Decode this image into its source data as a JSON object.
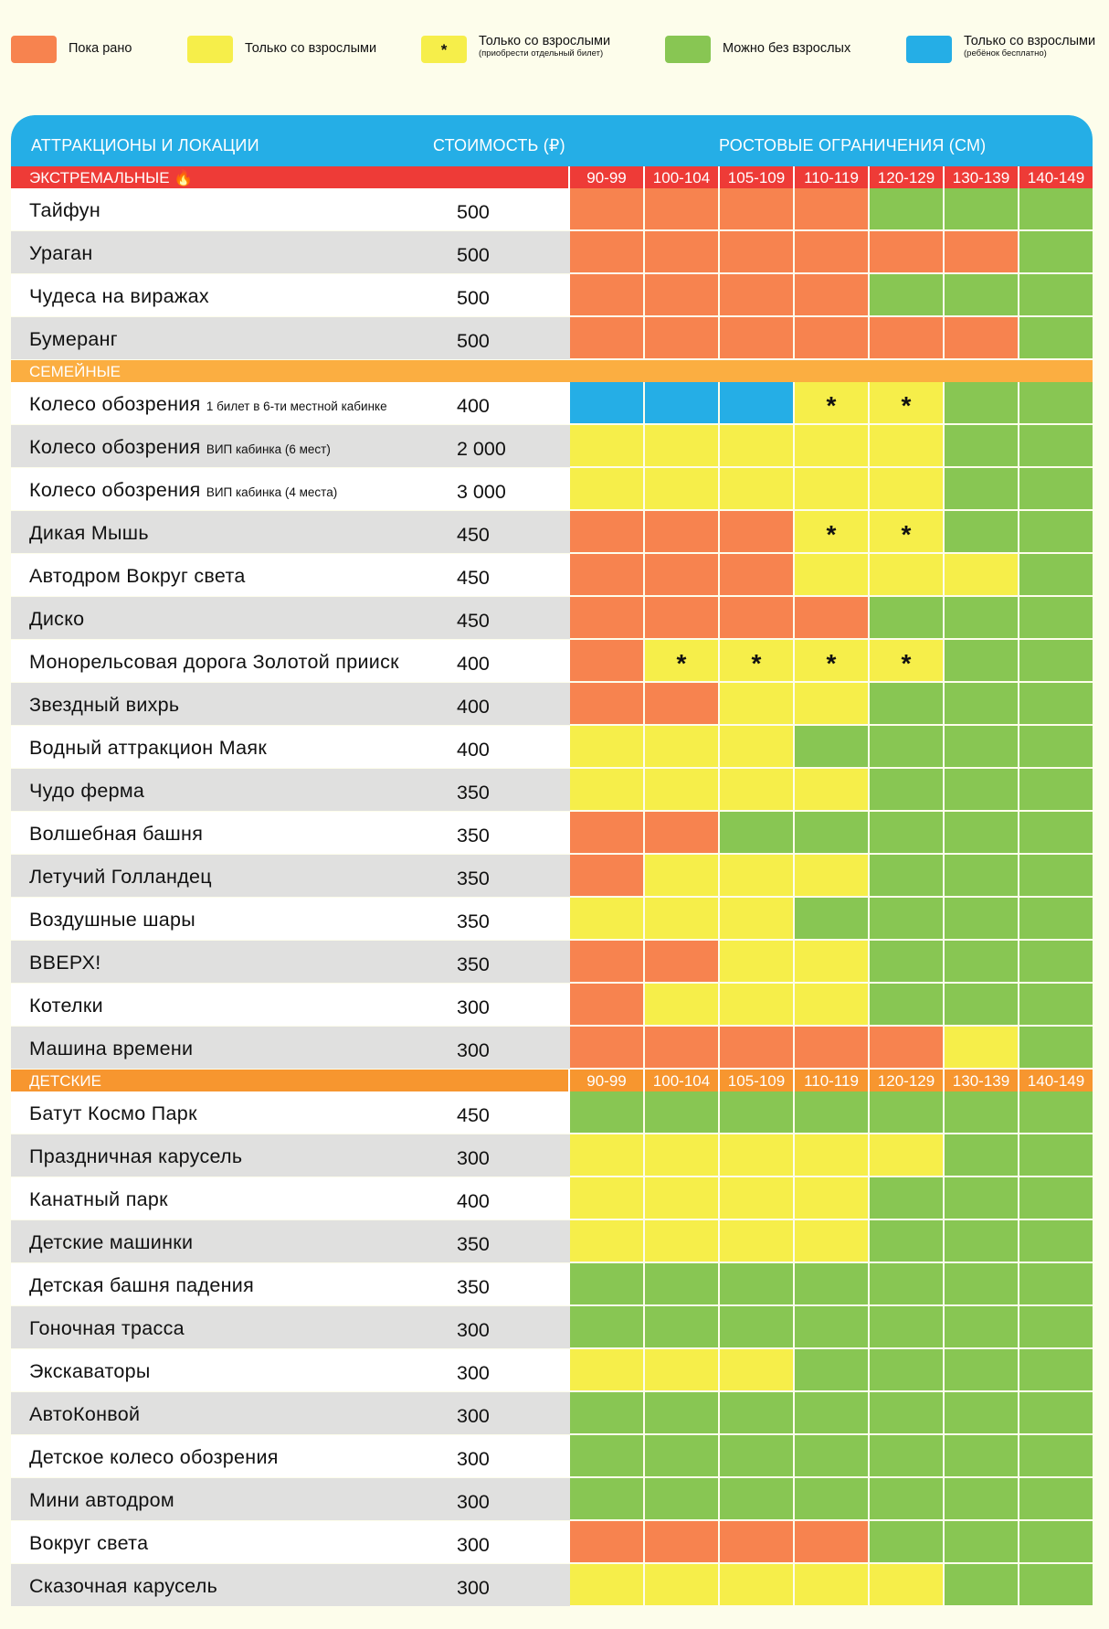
{
  "colors": {
    "early": "#f7834f",
    "adult": "#f6ee4a",
    "adult_ticket": "#f6ee4a",
    "alone": "#88c653",
    "free_child": "#25aee6",
    "header_blue": "#25aee6",
    "extreme_red": "#ee3b37",
    "family_orange": "#fbae41",
    "kids_orange": "#f7962f"
  },
  "legend": [
    {
      "key": "early",
      "label": "Пока рано",
      "sub": "",
      "mark": ""
    },
    {
      "key": "adult",
      "label": "Только со взрослыми",
      "sub": "",
      "mark": ""
    },
    {
      "key": "adult_ticket",
      "label": "Только со взрослыми",
      "sub": "(приобрести отдельный билет)",
      "mark": "*"
    },
    {
      "key": "alone",
      "label": "Можно без взрослых",
      "sub": "",
      "mark": ""
    },
    {
      "key": "free_child",
      "label": "Только со взрослыми",
      "sub": "(ребёнок бесплатно)",
      "mark": ""
    }
  ],
  "header": {
    "col_name": "АТТРАКЦИОНЫ И ЛОКАЦИИ",
    "col_price": "СТОИМОСТЬ (₽)",
    "col_heights": "РОСТОВЫЕ ОГРАНИЧЕНИЯ (СМ)"
  },
  "height_ranges": [
    "90-99",
    "100-104",
    "105-109",
    "110-119",
    "120-129",
    "130-139",
    "140-149"
  ],
  "sections": [
    {
      "title": "ЭКСТРЕМАЛЬНЫЕ 🔥",
      "color_key": "extreme_red",
      "show_ranges": true,
      "rows": [
        {
          "name": "Тайфун",
          "note": "",
          "price": "500",
          "cells": [
            "O",
            "O",
            "O",
            "O",
            "G",
            "G",
            "G"
          ]
        },
        {
          "name": "Ураган",
          "note": "",
          "price": "500",
          "cells": [
            "O",
            "O",
            "O",
            "O",
            "O",
            "O",
            "G"
          ]
        },
        {
          "name": "Чудеса на виражах",
          "note": "",
          "price": "500",
          "cells": [
            "O",
            "O",
            "O",
            "O",
            "G",
            "G",
            "G"
          ]
        },
        {
          "name": "Бумеранг",
          "note": "",
          "price": "500",
          "cells": [
            "O",
            "O",
            "O",
            "O",
            "O",
            "O",
            "G"
          ]
        }
      ]
    },
    {
      "title": "СЕМЕЙНЫЕ",
      "color_key": "family_orange",
      "show_ranges": false,
      "rows": [
        {
          "name": "Колесо обозрения",
          "note": "1 билет в 6-ти местной кабинке",
          "price": "400",
          "cells": [
            "B",
            "B",
            "B",
            "Y*",
            "Y*",
            "G",
            "G"
          ]
        },
        {
          "name": "Колесо обозрения",
          "note": "ВИП кабинка (6 мест)",
          "price": "2 000",
          "cells": [
            "Y",
            "Y",
            "Y",
            "Y",
            "Y",
            "G",
            "G"
          ]
        },
        {
          "name": "Колесо обозрения",
          "note": "ВИП кабинка (4 места)",
          "price": "3 000",
          "cells": [
            "Y",
            "Y",
            "Y",
            "Y",
            "Y",
            "G",
            "G"
          ]
        },
        {
          "name": "Дикая Мышь",
          "note": "",
          "price": "450",
          "cells": [
            "O",
            "O",
            "O",
            "Y*",
            "Y*",
            "G",
            "G"
          ]
        },
        {
          "name": "Автодром Вокруг света",
          "note": "",
          "price": "450",
          "cells": [
            "O",
            "O",
            "O",
            "Y",
            "Y",
            "Y",
            "G"
          ]
        },
        {
          "name": "Диско",
          "note": "",
          "price": "450",
          "cells": [
            "O",
            "O",
            "O",
            "O",
            "G",
            "G",
            "G"
          ]
        },
        {
          "name": "Монорельсовая дорога Золотой прииск",
          "note": "",
          "price": "400",
          "cells": [
            "O",
            "Y*",
            "Y*",
            "Y*",
            "Y*",
            "G",
            "G"
          ]
        },
        {
          "name": "Звездный вихрь",
          "note": "",
          "price": "400",
          "cells": [
            "O",
            "O",
            "Y",
            "Y",
            "G",
            "G",
            "G"
          ]
        },
        {
          "name": "Водный аттракцион Маяк",
          "note": "",
          "price": "400",
          "cells": [
            "Y",
            "Y",
            "Y",
            "G",
            "G",
            "G",
            "G"
          ]
        },
        {
          "name": "Чудо ферма",
          "note": "",
          "price": "350",
          "cells": [
            "Y",
            "Y",
            "Y",
            "Y",
            "G",
            "G",
            "G"
          ]
        },
        {
          "name": "Волшебная башня",
          "note": "",
          "price": "350",
          "cells": [
            "O",
            "O",
            "G",
            "G",
            "G",
            "G",
            "G"
          ]
        },
        {
          "name": "Летучий Голландец",
          "note": "",
          "price": "350",
          "cells": [
            "O",
            "Y",
            "Y",
            "Y",
            "G",
            "G",
            "G"
          ]
        },
        {
          "name": "Воздушные шары",
          "note": "",
          "price": "350",
          "cells": [
            "Y",
            "Y",
            "Y",
            "G",
            "G",
            "G",
            "G"
          ]
        },
        {
          "name": "ВВЕРХ!",
          "note": "",
          "price": "350",
          "cells": [
            "O",
            "O",
            "Y",
            "Y",
            "G",
            "G",
            "G"
          ]
        },
        {
          "name": "Котелки",
          "note": "",
          "price": "300",
          "cells": [
            "O",
            "Y",
            "Y",
            "Y",
            "G",
            "G",
            "G"
          ]
        },
        {
          "name": "Машина времени",
          "note": "",
          "price": "300",
          "cells": [
            "O",
            "O",
            "O",
            "O",
            "O",
            "Y",
            "G"
          ]
        }
      ]
    },
    {
      "title": "ДЕТСКИЕ",
      "color_key": "kids_orange",
      "show_ranges": true,
      "rows": [
        {
          "name": "Батут Космо Парк",
          "note": "",
          "price": "450",
          "cells": [
            "G",
            "G",
            "G",
            "G",
            "G",
            "G",
            "G"
          ]
        },
        {
          "name": "Праздничная карусель",
          "note": "",
          "price": "300",
          "cells": [
            "Y",
            "Y",
            "Y",
            "Y",
            "Y",
            "G",
            "G"
          ]
        },
        {
          "name": "Канатный парк",
          "note": "",
          "price": "400",
          "cells": [
            "Y",
            "Y",
            "Y",
            "Y",
            "G",
            "G",
            "G"
          ]
        },
        {
          "name": "Детские машинки",
          "note": "",
          "price": "350",
          "cells": [
            "Y",
            "Y",
            "Y",
            "Y",
            "G",
            "G",
            "G"
          ]
        },
        {
          "name": "Детская башня падения",
          "note": "",
          "price": "350",
          "cells": [
            "G",
            "G",
            "G",
            "G",
            "G",
            "G",
            "G"
          ]
        },
        {
          "name": "Гоночная трасса",
          "note": "",
          "price": "300",
          "cells": [
            "G",
            "G",
            "G",
            "G",
            "G",
            "G",
            "G"
          ]
        },
        {
          "name": "Экскаваторы",
          "note": "",
          "price": "300",
          "cells": [
            "Y",
            "Y",
            "Y",
            "G",
            "G",
            "G",
            "G"
          ]
        },
        {
          "name": "АвтоКонвой",
          "note": "",
          "price": "300",
          "cells": [
            "G",
            "G",
            "G",
            "G",
            "G",
            "G",
            "G"
          ]
        },
        {
          "name": "Детское колесо обозрения",
          "note": "",
          "price": "300",
          "cells": [
            "G",
            "G",
            "G",
            "G",
            "G",
            "G",
            "G"
          ]
        },
        {
          "name": "Мини автодром",
          "note": "",
          "price": "300",
          "cells": [
            "G",
            "G",
            "G",
            "G",
            "G",
            "G",
            "G"
          ]
        },
        {
          "name": "Вокруг света",
          "note": "",
          "price": "300",
          "cells": [
            "O",
            "O",
            "O",
            "O",
            "G",
            "G",
            "G"
          ]
        },
        {
          "name": "Сказочная карусель",
          "note": "",
          "price": "300",
          "cells": [
            "Y",
            "Y",
            "Y",
            "Y",
            "Y",
            "G",
            "G"
          ]
        }
      ]
    }
  ]
}
